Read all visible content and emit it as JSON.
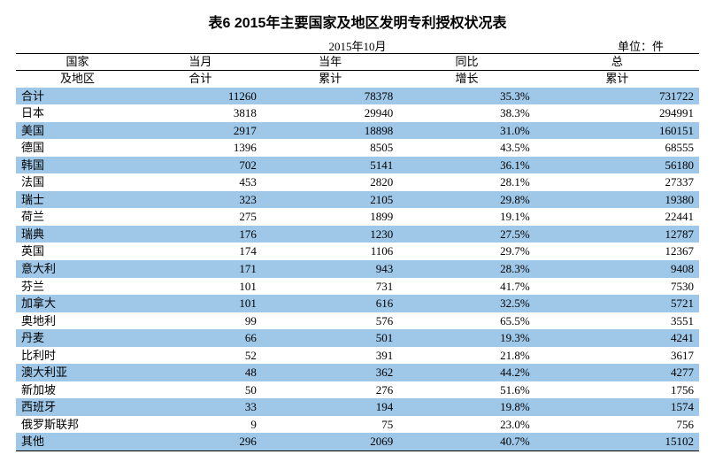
{
  "title": "表6  2015年主要国家及地区发明专利授权状况表",
  "period": "2015年10月",
  "unit": "单位：件",
  "headers": {
    "name1": "国家",
    "name2": "及地区",
    "month1": "当月",
    "month2": "合计",
    "ytd1": "当年",
    "ytd2": "累计",
    "yoy1": "同比",
    "yoy2": "增长",
    "total1": "总",
    "total2": "累计"
  },
  "stripe_colors": {
    "odd": "#9ec7e8",
    "even": "#ffffff"
  },
  "rows": [
    {
      "name": "合计",
      "month": "11260",
      "ytd": "78378",
      "yoy": "35.3%",
      "total": "731722"
    },
    {
      "name": "日本",
      "month": "3818",
      "ytd": "29940",
      "yoy": "38.3%",
      "total": "294991"
    },
    {
      "name": "美国",
      "month": "2917",
      "ytd": "18898",
      "yoy": "31.0%",
      "total": "160151"
    },
    {
      "name": "德国",
      "month": "1396",
      "ytd": "8505",
      "yoy": "43.5%",
      "total": "68555"
    },
    {
      "name": "韩国",
      "month": "702",
      "ytd": "5141",
      "yoy": "36.1%",
      "total": "56180"
    },
    {
      "name": "法国",
      "month": "453",
      "ytd": "2820",
      "yoy": "28.1%",
      "total": "27337"
    },
    {
      "name": "瑞士",
      "month": "323",
      "ytd": "2105",
      "yoy": "29.8%",
      "total": "19380"
    },
    {
      "name": "荷兰",
      "month": "275",
      "ytd": "1899",
      "yoy": "19.1%",
      "total": "22441"
    },
    {
      "name": "瑞典",
      "month": "176",
      "ytd": "1230",
      "yoy": "27.5%",
      "total": "12787"
    },
    {
      "name": "英国",
      "month": "174",
      "ytd": "1106",
      "yoy": "29.7%",
      "total": "12367"
    },
    {
      "name": "意大利",
      "month": "171",
      "ytd": "943",
      "yoy": "28.3%",
      "total": "9408"
    },
    {
      "name": "芬兰",
      "month": "101",
      "ytd": "731",
      "yoy": "41.7%",
      "total": "7530"
    },
    {
      "name": "加拿大",
      "month": "101",
      "ytd": "616",
      "yoy": "32.5%",
      "total": "5721"
    },
    {
      "name": "奥地利",
      "month": "99",
      "ytd": "576",
      "yoy": "65.5%",
      "total": "3551"
    },
    {
      "name": "丹麦",
      "month": "66",
      "ytd": "501",
      "yoy": "19.3%",
      "total": "4241"
    },
    {
      "name": "比利时",
      "month": "52",
      "ytd": "391",
      "yoy": "21.8%",
      "total": "3617"
    },
    {
      "name": "澳大利亚",
      "month": "48",
      "ytd": "362",
      "yoy": "44.2%",
      "total": "4277"
    },
    {
      "name": "新加坡",
      "month": "50",
      "ytd": "276",
      "yoy": "51.6%",
      "total": "1756"
    },
    {
      "name": "西班牙",
      "month": "33",
      "ytd": "194",
      "yoy": "19.8%",
      "total": "1574"
    },
    {
      "name": "俄罗斯联邦",
      "month": "9",
      "ytd": "75",
      "yoy": "23.0%",
      "total": "756"
    },
    {
      "name": "其他",
      "month": "296",
      "ytd": "2069",
      "yoy": "40.7%",
      "total": "15102"
    }
  ]
}
